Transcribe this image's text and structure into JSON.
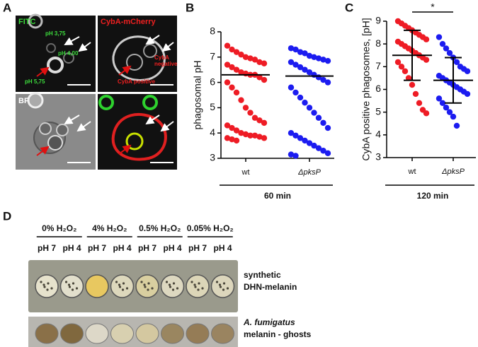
{
  "panel_labels": [
    "A",
    "B",
    "C",
    "D"
  ],
  "panel_a": {
    "channels": [
      "FITC",
      "CybA-mCherry",
      "BF"
    ],
    "annotations": [
      "pH 3,75",
      "pH 4,00",
      "pH 5,75",
      "CybA",
      "negative",
      "CybA positive"
    ]
  },
  "chart_data": [
    {
      "type": "strip",
      "ylabel": "phagosomal pH",
      "group_label": "60 min",
      "categories": [
        "wt",
        "ΔpksP"
      ],
      "colors": [
        "#ee1c25",
        "#1c1cf0"
      ],
      "values": [
        [
          7.45,
          7.3,
          7.2,
          7.1,
          7.0,
          6.95,
          6.9,
          6.8,
          6.75,
          6.7,
          6.6,
          6.5,
          6.4,
          6.35,
          6.3,
          6.3,
          6.2,
          6.1,
          6.0,
          5.8,
          5.6,
          5.3,
          5.0,
          4.8,
          4.6,
          4.5,
          4.4,
          4.3,
          4.2,
          4.1,
          4.0,
          3.95,
          3.9,
          3.9,
          3.85,
          3.8,
          3.8,
          3.75,
          3.7
        ],
        [
          7.35,
          7.3,
          7.2,
          7.15,
          7.05,
          7.0,
          6.95,
          6.9,
          6.85,
          6.8,
          6.7,
          6.6,
          6.5,
          6.4,
          6.3,
          6.2,
          6.1,
          6.0,
          5.8,
          5.6,
          5.4,
          5.2,
          5.0,
          4.8,
          4.6,
          4.4,
          4.2,
          4.0,
          3.9,
          3.8,
          3.7,
          3.6,
          3.5,
          3.4,
          3.3,
          3.2,
          3.15,
          3.1
        ]
      ],
      "center": [
        6.3,
        6.25
      ],
      "ylim": [
        3,
        8
      ],
      "yticks": [
        3,
        4,
        5,
        6,
        7,
        8
      ]
    },
    {
      "type": "strip",
      "ylabel": "CybA positive phagosomes, [pH]",
      "group_label": "120 min",
      "categories": [
        "wt",
        "ΔpksP"
      ],
      "colors": [
        "#ee1c25",
        "#1c1cf0"
      ],
      "values": [
        [
          9.0,
          8.9,
          8.8,
          8.7,
          8.6,
          8.5,
          8.4,
          8.3,
          8.2,
          8.1,
          8.0,
          7.9,
          7.8,
          7.7,
          7.6,
          7.5,
          7.4,
          7.3,
          7.2,
          7.0,
          6.8,
          6.5,
          6.2,
          5.8,
          5.4,
          5.1,
          4.95
        ],
        [
          8.3,
          8.0,
          7.8,
          7.6,
          7.4,
          7.2,
          7.0,
          6.9,
          6.8,
          6.6,
          6.5,
          6.4,
          6.3,
          6.2,
          6.1,
          6.0,
          5.9,
          5.8,
          5.6,
          5.4,
          5.2,
          5.0,
          4.8,
          4.4
        ]
      ],
      "center": [
        7.5,
        6.4
      ],
      "error": [
        1.1,
        1.0
      ],
      "significance": "*",
      "ylim": [
        3,
        9
      ],
      "yticks": [
        3,
        4,
        5,
        6,
        7,
        8,
        9
      ]
    }
  ],
  "panel_d": {
    "treatments": [
      "0% H₂O₂",
      "4% H₂O₂",
      "0.5% H₂O₂",
      "0.05% H₂O₂"
    ],
    "ph": [
      "pH 7",
      "pH 4",
      "pH 7",
      "pH 4",
      "pH 7",
      "pH 4",
      "pH 7",
      "pH 4"
    ],
    "rows": [
      [
        "synthetic",
        "DHN-melanin"
      ],
      [
        "A. fumigatus",
        "melanin - ghosts"
      ]
    ]
  }
}
